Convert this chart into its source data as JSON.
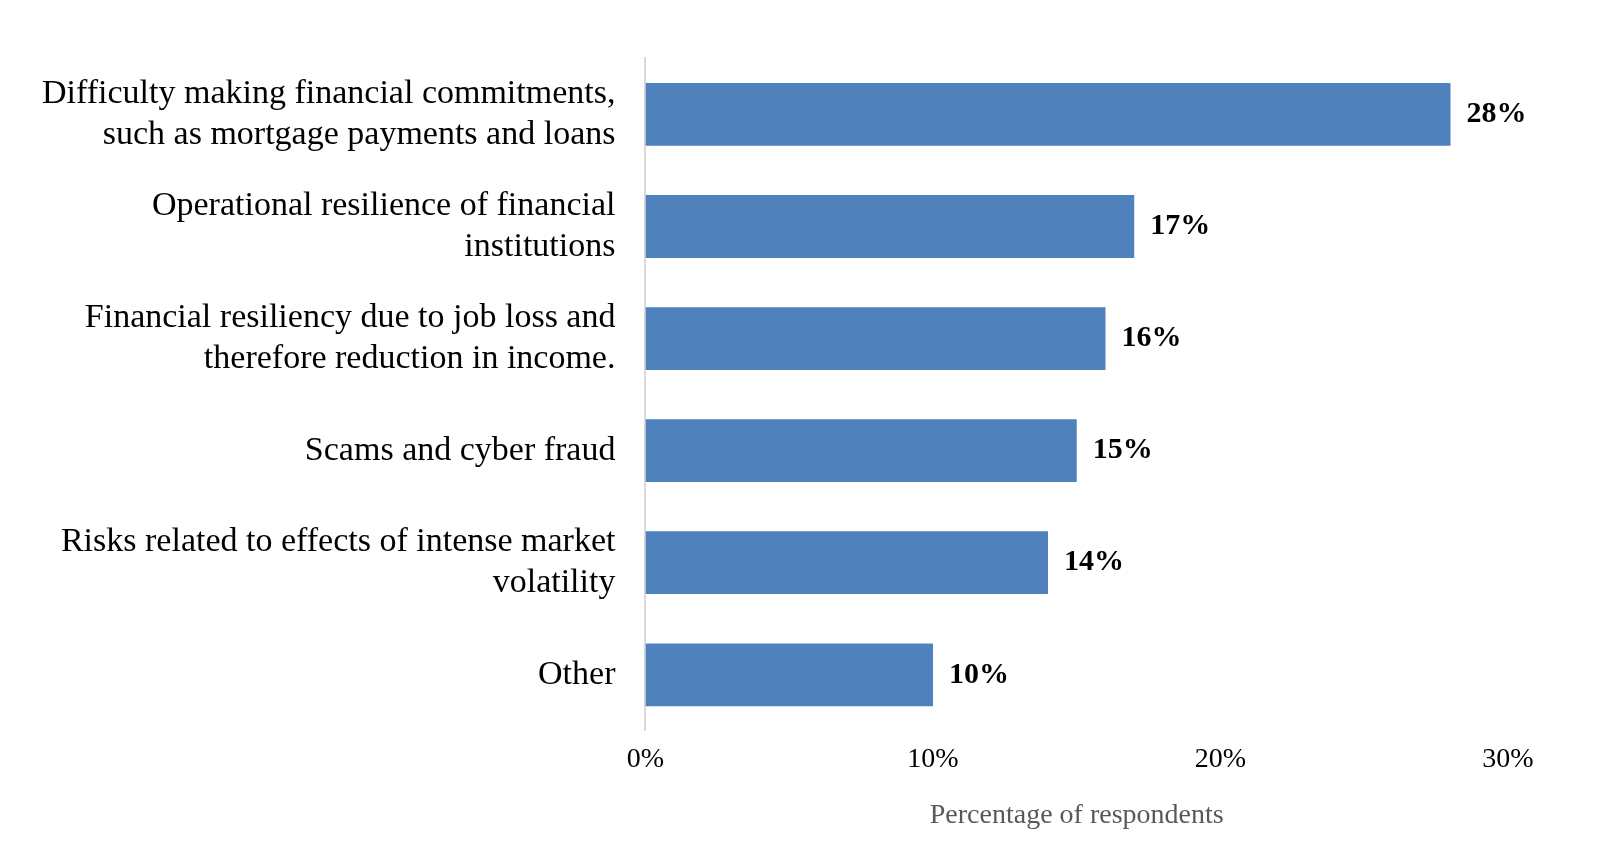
{
  "chart_data": {
    "type": "bar",
    "orientation": "horizontal",
    "xlabel": "Percentage of respondents",
    "categories": [
      "Difficulty making financial commitments, such as mortgage payments and loans",
      "Operational resilience of financial institutions",
      "Financial resiliency due to job loss and therefore reduction in income.",
      "Scams and cyber fraud",
      "Risks related to effects of intense market volatility",
      "Other"
    ],
    "values": [
      28,
      17,
      16,
      15,
      14,
      10
    ],
    "value_labels": [
      "28%",
      "17%",
      "16%",
      "15%",
      "14%",
      "10%"
    ],
    "color": "#4f81bd",
    "xlim": [
      0,
      30
    ],
    "xticks": [
      {
        "value": 0,
        "label": "0%"
      },
      {
        "value": 10,
        "label": "10%"
      },
      {
        "value": 20,
        "label": "20%"
      },
      {
        "value": 30,
        "label": "30%"
      }
    ],
    "grid": false,
    "legend": false
  }
}
